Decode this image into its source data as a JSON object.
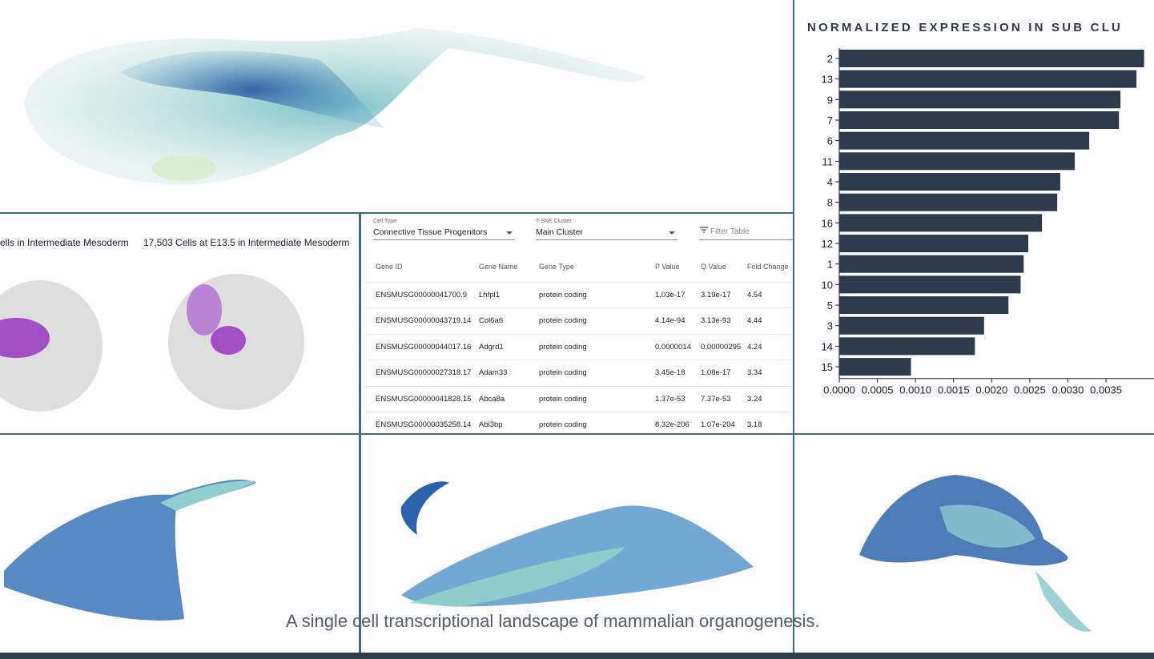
{
  "panels": {
    "spatial_titles": [
      "ells in Intermediate Mesoderm",
      "17,503 Cells at E13.5 in Intermediate Mesoderm"
    ]
  },
  "table": {
    "filters": [
      {
        "label": "Cell Type",
        "value": "Connective Tissue Progenitors"
      },
      {
        "label": "T-SNE Cluster",
        "value": "Main Cluster"
      }
    ],
    "filter_placeholder": "Filter Table",
    "columns": [
      "Gene ID",
      "Gene Name",
      "Gene Type",
      "P Value",
      "Q Value",
      "Fold Change"
    ],
    "rows": [
      [
        "ENSMUSG00000041700.9",
        "Lhfpl1",
        "protein coding",
        "1.03e-17",
        "3.19e-17",
        "4.54"
      ],
      [
        "ENSMUSG00000043719.14",
        "Col6a6",
        "protein coding",
        "4.14e-94",
        "3.13e-93",
        "4.44"
      ],
      [
        "ENSMUSG00000044017.16",
        "Adgrd1",
        "protein coding",
        "0.0000014",
        "0.00000295",
        "4.24"
      ],
      [
        "ENSMUSG00000027318.17",
        "Adam33",
        "protein coding",
        "3.45e-18",
        "1.08e-17",
        "3.34"
      ],
      [
        "ENSMUSG00000041828.15",
        "Abca8a",
        "protein coding",
        "1.37e-53",
        "7.37e-53",
        "3.24"
      ],
      [
        "ENSMUSG00000035258.14",
        "Abi3bp",
        "protein coding",
        "8.32e-206",
        "1.07e-204",
        "3.18"
      ]
    ]
  },
  "bar_chart": {
    "type": "bar",
    "orientation": "horizontal",
    "title": "NORMALIZED EXPRESSION IN SUB CLU",
    "categories": [
      "2",
      "13",
      "9",
      "7",
      "6",
      "11",
      "4",
      "8",
      "16",
      "12",
      "1",
      "10",
      "5",
      "3",
      "14",
      "15"
    ],
    "values": [
      0.004,
      0.0039,
      0.00369,
      0.00367,
      0.00328,
      0.00309,
      0.0029,
      0.00286,
      0.00266,
      0.00248,
      0.00242,
      0.00238,
      0.00222,
      0.0019,
      0.00178,
      0.00094
    ],
    "color": "#2c3a4b",
    "xlim": [
      0,
      0.00413
    ],
    "xticks": [
      {
        "value": 0,
        "label": "0.0000"
      },
      {
        "value": 0.0005,
        "label": "0.0005"
      },
      {
        "value": 0.001,
        "label": "0.0010"
      },
      {
        "value": 0.0015,
        "label": "0.0015"
      },
      {
        "value": 0.002,
        "label": "0.0020"
      },
      {
        "value": 0.0025,
        "label": "0.0025"
      },
      {
        "value": 0.003,
        "label": "0.0030"
      },
      {
        "value": 0.0035,
        "label": "0.0035"
      }
    ]
  },
  "caption": "A single cell transcriptional landscape of mammalian organogenesis."
}
